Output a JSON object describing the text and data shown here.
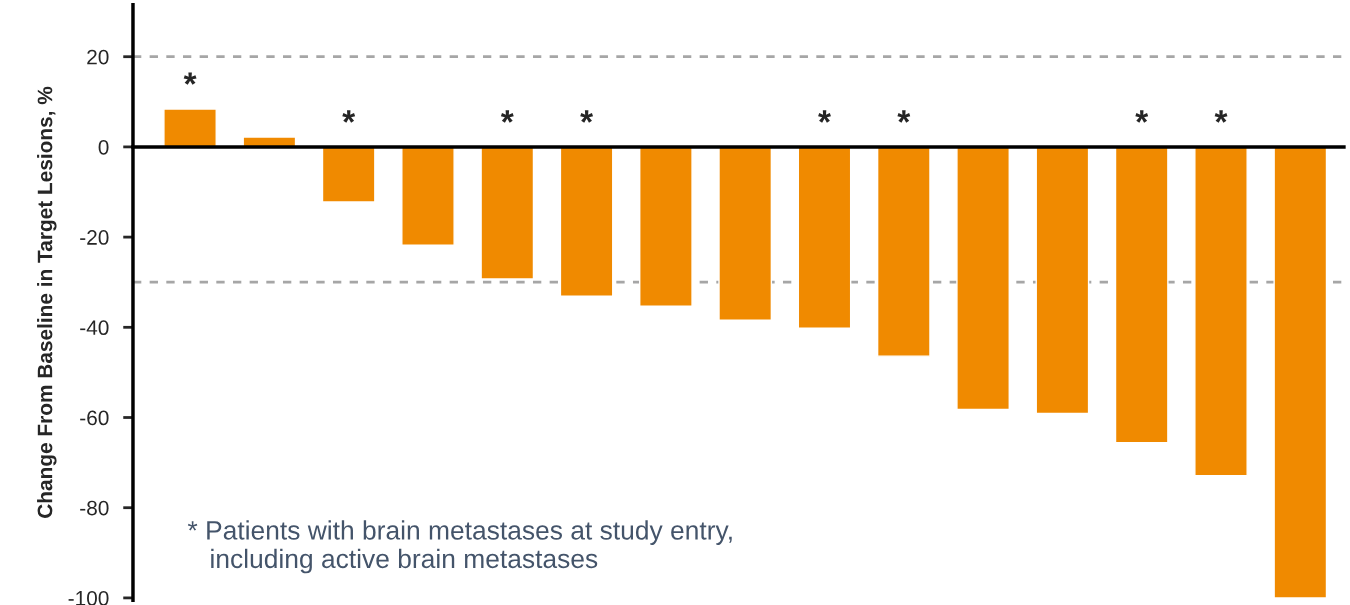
{
  "chart_data": {
    "type": "bar",
    "ylabel": "Change From Baseline in Target Lesions, %",
    "categories": [
      null,
      null,
      null,
      null,
      null,
      null,
      null,
      null,
      null,
      null,
      null,
      null,
      null,
      null,
      null
    ],
    "values": [
      8.4,
      2.2,
      -12.2,
      -21.8,
      -29.3,
      -33.1,
      -35.3,
      -38.4,
      -40.2,
      -46.4,
      -58.2,
      -59.1,
      -65.6,
      -72.9,
      -100
    ],
    "value_labels": [
      "*",
      null,
      "*",
      null,
      "*",
      "*",
      null,
      null,
      "*",
      "*",
      null,
      null,
      "*",
      "*",
      null
    ],
    "color": "#f08a00",
    "ylim": [
      -100.5,
      31.5
    ],
    "yticks": [
      -100,
      -80,
      -60,
      -40,
      -20,
      0,
      20
    ],
    "ref_lines": [
      {
        "axis": "y",
        "value": 20,
        "color": "#a6a6a6",
        "line_style": "dashed"
      },
      {
        "axis": "y",
        "value": -30,
        "color": "#a6a6a6",
        "line_style": "dashed"
      }
    ],
    "annotations": [
      "* Patients with brain metastases at study entry,\n   including active brain metastases"
    ],
    "grid": false,
    "tick_labels": "y"
  }
}
